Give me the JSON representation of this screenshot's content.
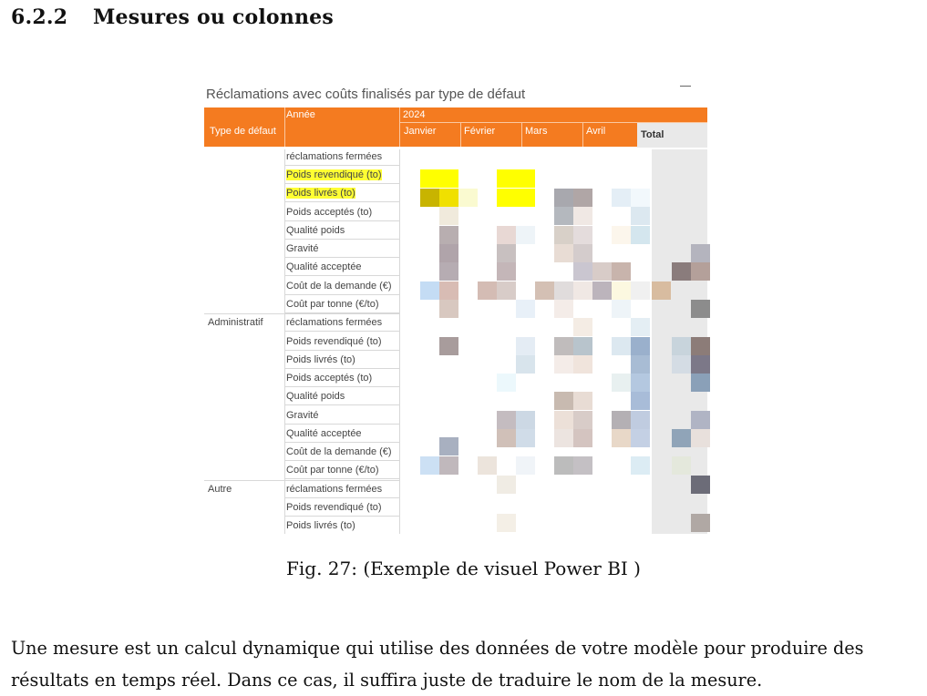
{
  "section": {
    "number": "6.2.2",
    "title": "Mesures ou colonnes"
  },
  "visual": {
    "title": "Réclamations avec coûts finalisés par type de défaut",
    "header": {
      "year_label": "Année",
      "year_value": "2024",
      "type_label": "Type de défaut",
      "months": [
        "Janvier",
        "Février",
        "Mars",
        "Avril"
      ],
      "total_label": "Total"
    },
    "groups": [
      {
        "name": "",
        "rows": [
          "réclamations fermées",
          "Poids revendiqué (to)",
          "Poids livrés (to)",
          "Poids acceptés (to)",
          "Qualité poids",
          "Gravité",
          "Qualité acceptée",
          "Coût de la demande (€)",
          "Coût par tonne (€/to)"
        ]
      },
      {
        "name": "Administratif",
        "rows": [
          "réclamations fermées",
          "Poids revendiqué (to)",
          "Poids livrés (to)",
          "Poids acceptés (to)",
          "Qualité poids",
          "Gravité",
          "Qualité acceptée",
          "Coût de la demande (€)",
          "Coût par tonne (€/to)"
        ]
      },
      {
        "name": "Autre",
        "rows": [
          "réclamations fermées",
          "Poids revendiqué (to)",
          "Poids livrés (to)"
        ]
      }
    ],
    "highlighted_rows": [
      "Poids revendiqué (to)",
      "Poids livrés (to)"
    ],
    "colors": {
      "header": "#f47b20",
      "highlight": "#ffff33",
      "total_bg": "#e9e9e9"
    }
  },
  "caption": "Fig. 27: (Exemple de visuel Power BI )",
  "paragraph": "Une mesure est un calcul dynamique qui utilise des données de votre modèle pour produire des résultats en temps réel. Dans ce cas, il suffira juste de traduire le nom de la mesure."
}
